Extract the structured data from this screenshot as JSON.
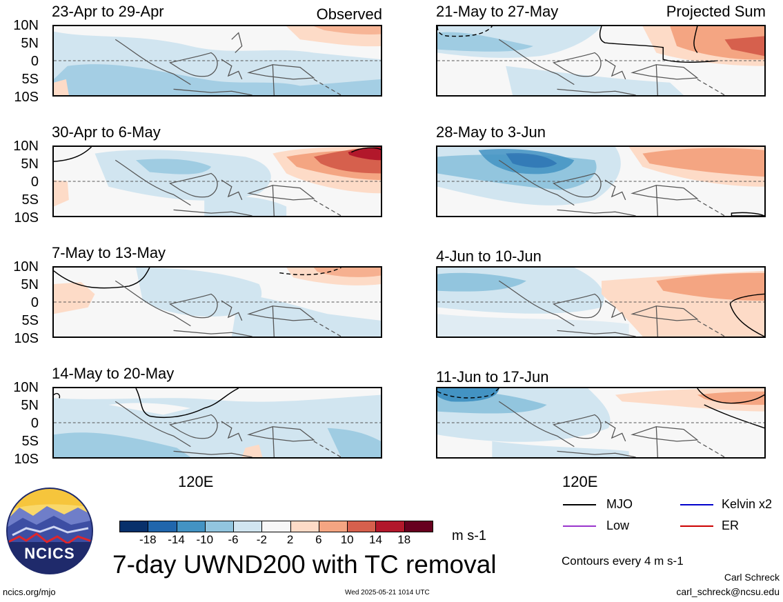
{
  "panels_left": [
    {
      "title": "23-Apr to 29-Apr",
      "label": "Observed"
    },
    {
      "title": "30-Apr to 6-May"
    },
    {
      "title": "7-May to 13-May"
    },
    {
      "title": "14-May to 20-May"
    }
  ],
  "panels_right": [
    {
      "title": "21-May to 27-May",
      "label": "Projected Sum"
    },
    {
      "title": "28-May to 3-Jun"
    },
    {
      "title": "4-Jun to 10-Jun"
    },
    {
      "title": "11-Jun to 17-Jun"
    }
  ],
  "lat_ticks": [
    "10N",
    "5N",
    "0",
    "5S",
    "10S"
  ],
  "lon_tick": "120E",
  "colorbar": {
    "colors": [
      "#08306b",
      "#2166ac",
      "#4393c3",
      "#92c5de",
      "#d1e5f0",
      "#f7f7f7",
      "#fddbc7",
      "#f4a582",
      "#d6604d",
      "#b2182b",
      "#67001f"
    ],
    "ticks": [
      "-18",
      "-14",
      "-10",
      "-6",
      "-2",
      "2",
      "6",
      "10",
      "14",
      "18"
    ],
    "units": "m s-1"
  },
  "main_title": "7-day UWND200 with TC removal",
  "legend": [
    {
      "label": "MJO",
      "color": "#000000"
    },
    {
      "label": "Kelvin x2",
      "color": "#0000cc"
    },
    {
      "label": "Low",
      "color": "#9933cc"
    },
    {
      "label": "ER",
      "color": "#cc0000"
    }
  ],
  "contour_note": "Contours every 4 m s-1",
  "logo_text": "NCICS",
  "footer": {
    "url": "ncics.org/mjo",
    "timestamp": "Wed 2025-05-21 1014 UTC",
    "author": "Carl Schreck",
    "email": "carl_schreck@ncsu.edu"
  }
}
